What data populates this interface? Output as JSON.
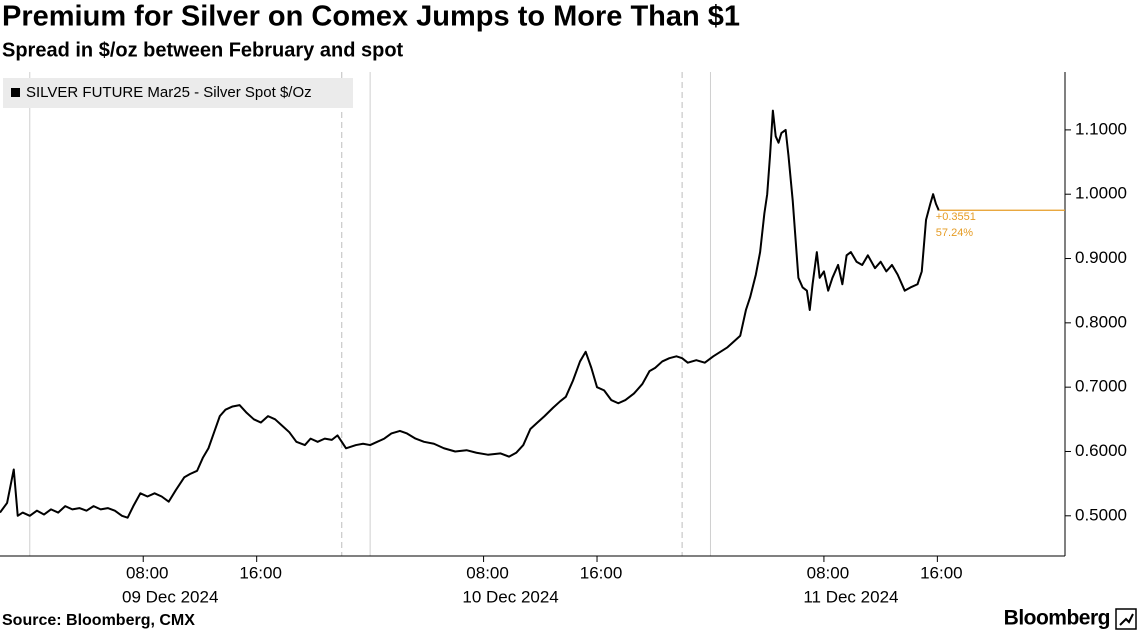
{
  "chart_data": {
    "type": "line",
    "title": "Premium for Silver on Comex Jumps to More Than $1",
    "subtitle": "Spread in $/oz between February and spot",
    "source": "Source: Bloomberg, CMX",
    "brand": "Bloomberg",
    "x": [
      -2.1,
      -1.6,
      -1.13,
      -0.85,
      -0.5,
      0,
      0.5,
      1.0,
      1.5,
      2.0,
      2.5,
      3.0,
      3.5,
      4.0,
      4.5,
      5,
      5.5,
      6,
      6.5,
      6.9,
      7.3,
      7.8,
      8.3,
      8.8,
      9.3,
      9.8,
      10.3,
      10.9,
      11.3,
      11.8,
      12.2,
      12.6,
      13.0,
      13.4,
      13.8,
      14.3,
      14.8,
      15.3,
      15.8,
      16.3,
      16.8,
      17.3,
      17.8,
      18.3,
      18.8,
      19.4,
      19.8,
      20.3,
      20.8,
      21.3,
      21.7,
      22.0,
      22.3,
      23.0,
      23.5,
      24,
      24.5,
      25,
      25.5,
      26.1,
      26.6,
      27.2,
      27.8,
      28.5,
      29.2,
      30,
      30.8,
      31.5,
      32.3,
      33.2,
      33.8,
      34.3,
      34.8,
      35.3,
      35.8,
      36.3,
      36.9,
      37.4,
      37.8,
      38.3,
      38.8,
      39.2,
      39.6,
      40.0,
      40.5,
      41.0,
      41.5,
      42.0,
      42.6,
      43.2,
      43.7,
      44.1,
      44.6,
      45.1,
      45.6,
      46.0,
      46.4,
      47,
      47.6,
      48.2,
      48.7,
      49.2,
      49.7,
      50.1,
      50.5,
      50.8,
      51.2,
      51.5,
      51.8,
      52.0,
      52.2,
      52.4,
      52.6,
      52.8,
      53.0,
      53.3,
      53.5,
      53.8,
      54.0,
      54.2,
      54.5,
      54.8,
      55.0,
      55.2,
      55.5,
      55.7,
      56.0,
      56.3,
      56.6,
      57.0,
      57.3,
      57.6,
      57.9,
      58.3,
      58.7,
      59.1,
      59.6,
      60.0,
      60.4,
      60.8,
      61.2,
      61.7,
      62.1,
      62.6,
      62.9,
      63.2,
      63.5,
      63.7,
      63.9,
      64.1
    ],
    "series": [
      {
        "name": "SILVER FUTURE Mar25 - Silver Spot $/Oz",
        "color": "#000000",
        "values": [
          0.505,
          0.52,
          0.572,
          0.5,
          0.505,
          0.5,
          0.508,
          0.502,
          0.51,
          0.505,
          0.515,
          0.51,
          0.512,
          0.508,
          0.515,
          0.51,
          0.512,
          0.508,
          0.5,
          0.497,
          0.515,
          0.535,
          0.53,
          0.535,
          0.53,
          0.522,
          0.54,
          0.56,
          0.565,
          0.57,
          0.59,
          0.605,
          0.63,
          0.655,
          0.665,
          0.67,
          0.672,
          0.66,
          0.65,
          0.645,
          0.655,
          0.65,
          0.64,
          0.63,
          0.615,
          0.61,
          0.62,
          0.615,
          0.62,
          0.618,
          0.625,
          0.615,
          0.605,
          0.61,
          0.612,
          0.61,
          0.615,
          0.62,
          0.628,
          0.632,
          0.628,
          0.62,
          0.615,
          0.612,
          0.605,
          0.6,
          0.602,
          0.598,
          0.595,
          0.597,
          0.592,
          0.598,
          0.61,
          0.635,
          0.645,
          0.655,
          0.668,
          0.678,
          0.685,
          0.71,
          0.74,
          0.755,
          0.73,
          0.7,
          0.695,
          0.68,
          0.675,
          0.68,
          0.69,
          0.705,
          0.725,
          0.73,
          0.74,
          0.745,
          0.748,
          0.745,
          0.738,
          0.742,
          0.738,
          0.748,
          0.755,
          0.762,
          0.772,
          0.78,
          0.82,
          0.84,
          0.875,
          0.91,
          0.97,
          1.0,
          1.06,
          1.13,
          1.09,
          1.08,
          1.095,
          1.1,
          1.06,
          0.99,
          0.93,
          0.87,
          0.855,
          0.85,
          0.82,
          0.86,
          0.91,
          0.87,
          0.88,
          0.85,
          0.87,
          0.89,
          0.86,
          0.905,
          0.91,
          0.895,
          0.89,
          0.905,
          0.885,
          0.895,
          0.88,
          0.89,
          0.875,
          0.85,
          0.855,
          0.86,
          0.88,
          0.96,
          0.985,
          1.0,
          0.985,
          0.975
        ]
      }
    ],
    "last_value_labels": [
      "+0.3551",
      "57.24%"
    ],
    "last_value_color": "#e69c24",
    "xlim": [
      -2.1,
      73
    ],
    "xticks": [
      {
        "value": 8,
        "label": "08:00"
      },
      {
        "value": 16,
        "label": "16:00"
      },
      {
        "value": 32,
        "label": "08:00"
      },
      {
        "value": 40,
        "label": "16:00"
      },
      {
        "value": 56,
        "label": "08:00"
      },
      {
        "value": 64,
        "label": "16:00"
      }
    ],
    "x_date_labels": [
      "09 Dec 2024",
      "10 Dec 2024",
      "11 Dec 2024"
    ],
    "day_lines": [
      0,
      24,
      48
    ],
    "session_lines": [
      22,
      46
    ],
    "ylim": [
      0.4375,
      1.19
    ],
    "yticks": [
      {
        "value": 0.5,
        "label": "0.5000"
      },
      {
        "value": 0.6,
        "label": "0.6000"
      },
      {
        "value": 0.7,
        "label": "0.7000"
      },
      {
        "value": 0.8,
        "label": "0.8000"
      },
      {
        "value": 0.9,
        "label": "0.9000"
      },
      {
        "value": 1.0,
        "label": "1.0000"
      },
      {
        "value": 1.1,
        "label": "1.1000"
      }
    ],
    "grid": false,
    "legend": "top-left"
  }
}
